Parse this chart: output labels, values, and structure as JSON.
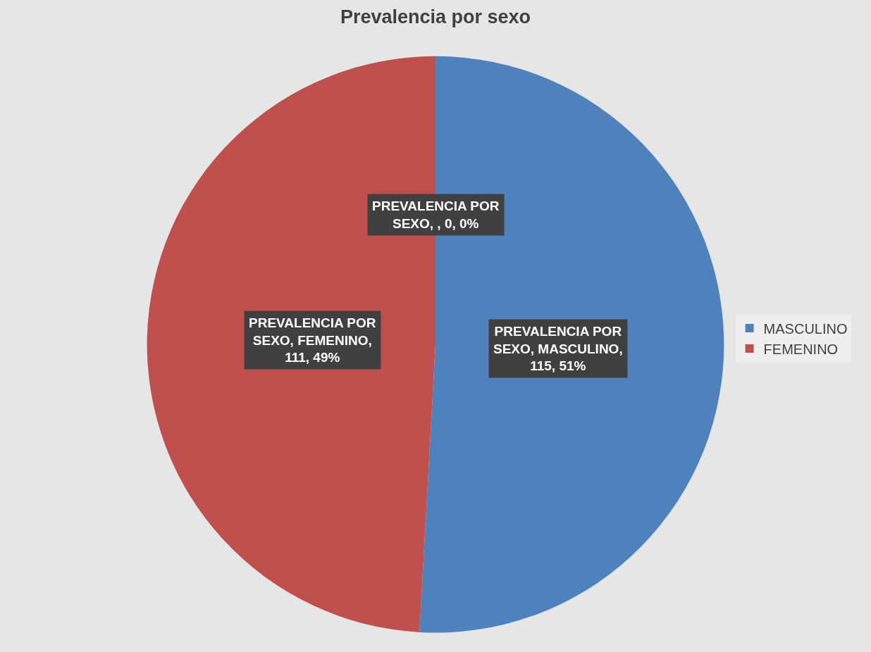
{
  "chart_data": {
    "type": "pie",
    "title": "Prevalencia por sexo",
    "categories": [
      "MASCULINO",
      "FEMENINO",
      null
    ],
    "values": [
      115,
      111,
      0
    ],
    "colors": [
      "#4f81bd",
      "#c0504d",
      "#8064a2"
    ],
    "value_labels": [
      "PREVALENCIA POR SEXO, MASCULINO, 115, 51%",
      "PREVALENCIA POR SEXO, FEMENINO, 111, 49%",
      "PREVALENCIA POR SEXO, , 0, 0%"
    ],
    "legend": "right"
  }
}
